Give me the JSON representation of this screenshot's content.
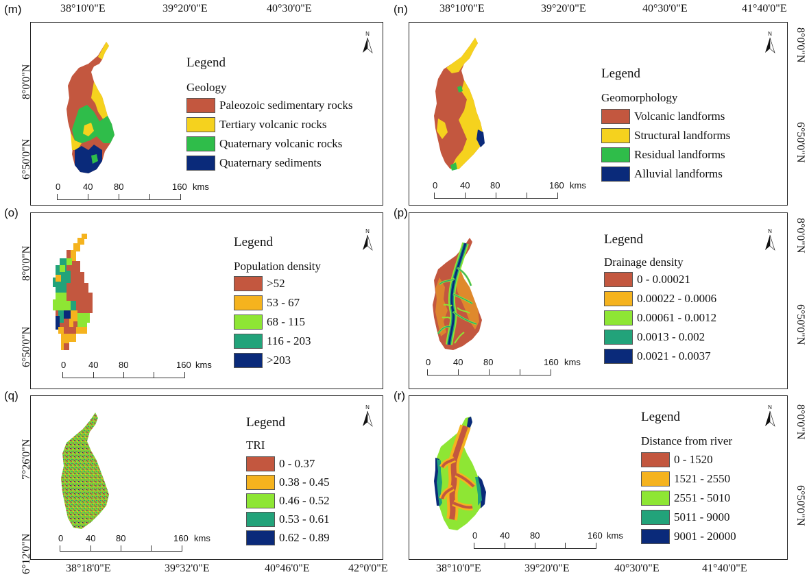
{
  "panels": {
    "m": {
      "label": "(m)",
      "legend_title": "Legend",
      "legend_sub": "Geology",
      "items": [
        {
          "label": "Paleozoic sedimentary rocks",
          "color": "#c3573f"
        },
        {
          "label": "Tertiary volcanic rocks",
          "color": "#f5d21e"
        },
        {
          "label": "Quaternary volcanic rocks",
          "color": "#2fbd4a"
        },
        {
          "label": "Quaternary sediments",
          "color": "#0a2a7a"
        }
      ],
      "scale": [
        "0",
        "40",
        "80",
        "160",
        "kms"
      ],
      "north": "N"
    },
    "n": {
      "label": "(n)",
      "legend_title": "Legend",
      "legend_sub": "Geomorphology",
      "items": [
        {
          "label": "Volcanic landforms",
          "color": "#c3573f"
        },
        {
          "label": "Structural landforms",
          "color": "#f5d21e"
        },
        {
          "label": "Residual landforms",
          "color": "#2fbd4a"
        },
        {
          "label": "Alluvial landforms",
          "color": "#0a2a7a"
        }
      ],
      "scale": [
        "0",
        "40",
        "80",
        "160",
        "kms"
      ],
      "north": "N"
    },
    "o": {
      "label": "(o)",
      "legend_title": "Legend",
      "legend_sub": "Population density",
      "items": [
        {
          "label": ">52",
          "color": "#c3573f"
        },
        {
          "label": "53 - 67",
          "color": "#f5b31e"
        },
        {
          "label": "68 - 115",
          "color": "#8ee634"
        },
        {
          "label": "116 - 203",
          "color": "#22a37a"
        },
        {
          "label": ">203",
          "color": "#0a2a7a"
        }
      ],
      "scale": [
        "0",
        "40",
        "80",
        "160",
        "kms"
      ],
      "north": "N"
    },
    "p": {
      "label": "(p)",
      "legend_title": "Legend",
      "legend_sub": "Drainage density",
      "items": [
        {
          "label": "0 - 0.00021",
          "color": "#c3573f"
        },
        {
          "label": "0.00022 - 0.0006",
          "color": "#f5b31e"
        },
        {
          "label": "0.00061 - 0.0012",
          "color": "#8ee634"
        },
        {
          "label": "0.0013 - 0.002",
          "color": "#22a37a"
        },
        {
          "label": "0.0021 - 0.0037",
          "color": "#0a2a7a"
        }
      ],
      "scale": [
        "0",
        "40",
        "80",
        "160",
        "kms"
      ],
      "north": "N"
    },
    "q": {
      "label": "(q)",
      "legend_title": "Legend",
      "legend_sub": "TRI",
      "items": [
        {
          "label": "0 - 0.37",
          "color": "#c3573f"
        },
        {
          "label": "0.38 - 0.45",
          "color": "#f5b31e"
        },
        {
          "label": "0.46 - 0.52",
          "color": "#8ee634"
        },
        {
          "label": "0.53 - 0.61",
          "color": "#22a37a"
        },
        {
          "label": "0.62 - 0.89",
          "color": "#0a2a7a"
        }
      ],
      "scale": [
        "0",
        "40",
        "80",
        "160",
        "kms"
      ],
      "north": "N"
    },
    "r": {
      "label": "(r)",
      "legend_title": "Legend",
      "legend_sub": "Distance from river",
      "items": [
        {
          "label": "0 - 1520",
          "color": "#c3573f"
        },
        {
          "label": "1521 - 2550",
          "color": "#f5b31e"
        },
        {
          "label": "2551 - 5010",
          "color": "#8ee634"
        },
        {
          "label": "5011 - 9000",
          "color": "#22a37a"
        },
        {
          "label": "9001 - 20000",
          "color": "#0a2a7a"
        }
      ],
      "scale": [
        "0",
        "40",
        "80",
        "160",
        "kms"
      ],
      "north": "N"
    }
  },
  "coords": {
    "top_left": [
      "38°10'0\"E",
      "39°20'0\"E",
      "40°30'0\"E"
    ],
    "top_right": [
      "38°10'0\"E",
      "39°20'0\"E",
      "40°30'0\"E",
      "41°40'0\"E"
    ],
    "bottom_left": [
      "38°18'0\"E",
      "39°32'0\"E",
      "40°46'0\"E",
      "42°0'0\"E"
    ],
    "bottom_right": [
      "38°10'0\"E",
      "39°20'0\"E",
      "40°30'0\"E",
      "41°40'0\"E"
    ],
    "left_m": [
      "8°0'0\"N",
      "6°50'0\"N"
    ],
    "left_o": [
      "8°0'0\"N",
      "6°50'0\"N"
    ],
    "left_q": [
      "7°26'0\"N",
      "6°12'0\"N"
    ],
    "right_n": [
      "8°0'0\"N",
      "6°50'0\"N"
    ],
    "right_p": [
      "8°0'0\"N",
      "6°50'0\"N"
    ],
    "right_r": [
      "8°0'0\"N",
      "6°50'0\"N"
    ]
  }
}
